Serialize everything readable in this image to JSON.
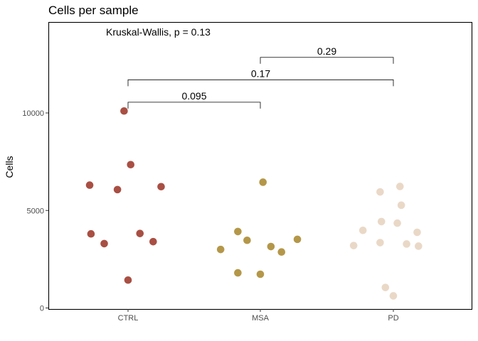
{
  "chart_data": {
    "type": "scatter",
    "title": "Cells per sample",
    "xlabel": "",
    "ylabel": "Cells",
    "ylim": [
      0,
      14000
    ],
    "y_ticks": [
      0,
      5000,
      10000
    ],
    "y_tick_labels": [
      "0",
      "5000",
      "10000"
    ],
    "categories": [
      "CTRL",
      "MSA",
      "PD"
    ],
    "colors": {
      "CTRL": "#a94f43",
      "MSA": "#b49748",
      "PD": "#ead8c7"
    },
    "annotation": "Kruskal-Wallis, p = 0.13",
    "comparisons": [
      {
        "from": "CTRL",
        "to": "MSA",
        "y": 10550,
        "label": "0.095"
      },
      {
        "from": "CTRL",
        "to": "PD",
        "y": 11700,
        "label": "0.17"
      },
      {
        "from": "MSA",
        "to": "PD",
        "y": 12850,
        "label": "0.29"
      }
    ],
    "series": [
      {
        "name": "CTRL",
        "points": [
          {
            "x_offset": -0.03,
            "y": 10100
          },
          {
            "x_offset": 0.02,
            "y": 7350
          },
          {
            "x_offset": -0.29,
            "y": 6300
          },
          {
            "x_offset": -0.08,
            "y": 6070
          },
          {
            "x_offset": 0.25,
            "y": 6220
          },
          {
            "x_offset": -0.28,
            "y": 3800
          },
          {
            "x_offset": 0.09,
            "y": 3820
          },
          {
            "x_offset": -0.18,
            "y": 3300
          },
          {
            "x_offset": 0.19,
            "y": 3400
          },
          {
            "x_offset": 0.0,
            "y": 1430
          }
        ]
      },
      {
        "name": "MSA",
        "points": [
          {
            "x_offset": 0.02,
            "y": 6450
          },
          {
            "x_offset": -0.17,
            "y": 3920
          },
          {
            "x_offset": -0.1,
            "y": 3470
          },
          {
            "x_offset": 0.28,
            "y": 3520
          },
          {
            "x_offset": -0.3,
            "y": 3000
          },
          {
            "x_offset": 0.08,
            "y": 3150
          },
          {
            "x_offset": 0.16,
            "y": 2870
          },
          {
            "x_offset": -0.17,
            "y": 1800
          },
          {
            "x_offset": 0.0,
            "y": 1730
          }
        ]
      },
      {
        "name": "PD",
        "points": [
          {
            "x_offset": -0.1,
            "y": 5950
          },
          {
            "x_offset": 0.05,
            "y": 6230
          },
          {
            "x_offset": 0.06,
            "y": 5270
          },
          {
            "x_offset": -0.09,
            "y": 4430
          },
          {
            "x_offset": 0.03,
            "y": 4350
          },
          {
            "x_offset": -0.23,
            "y": 3980
          },
          {
            "x_offset": 0.18,
            "y": 3880
          },
          {
            "x_offset": -0.1,
            "y": 3350
          },
          {
            "x_offset": 0.1,
            "y": 3280
          },
          {
            "x_offset": -0.3,
            "y": 3200
          },
          {
            "x_offset": 0.19,
            "y": 3170
          },
          {
            "x_offset": -0.06,
            "y": 1050
          },
          {
            "x_offset": 0.0,
            "y": 620
          }
        ]
      }
    ]
  }
}
